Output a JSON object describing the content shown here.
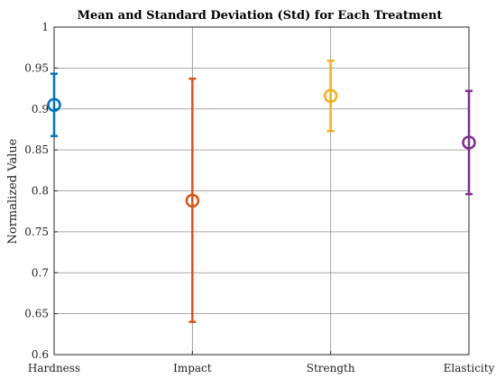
{
  "chart_data": {
    "type": "errorbar",
    "title": "Mean and Standard Deviation  (Std) for Each Treatment",
    "xlabel": "",
    "ylabel": "Normalized Value",
    "ylim": [
      0.6,
      1.0
    ],
    "yticks": [
      0.6,
      0.65,
      0.7,
      0.75,
      0.8,
      0.85,
      0.9,
      0.95,
      1.0
    ],
    "ytick_labels": [
      "0.6",
      "0.65",
      "0.7",
      "0.75",
      "0.8",
      "0.85",
      "0.9",
      "0.95",
      "1"
    ],
    "categories": [
      "Hardness",
      "Impact",
      "Strength",
      "Elasticity"
    ],
    "means": [
      0.905,
      0.788,
      0.916,
      0.859
    ],
    "lower": [
      0.867,
      0.64,
      0.873,
      0.796
    ],
    "upper": [
      0.943,
      0.937,
      0.959,
      0.922
    ],
    "colors": [
      "#0072BD",
      "#D95319",
      "#EDB120",
      "#7E2F8E"
    ],
    "grid": true
  }
}
